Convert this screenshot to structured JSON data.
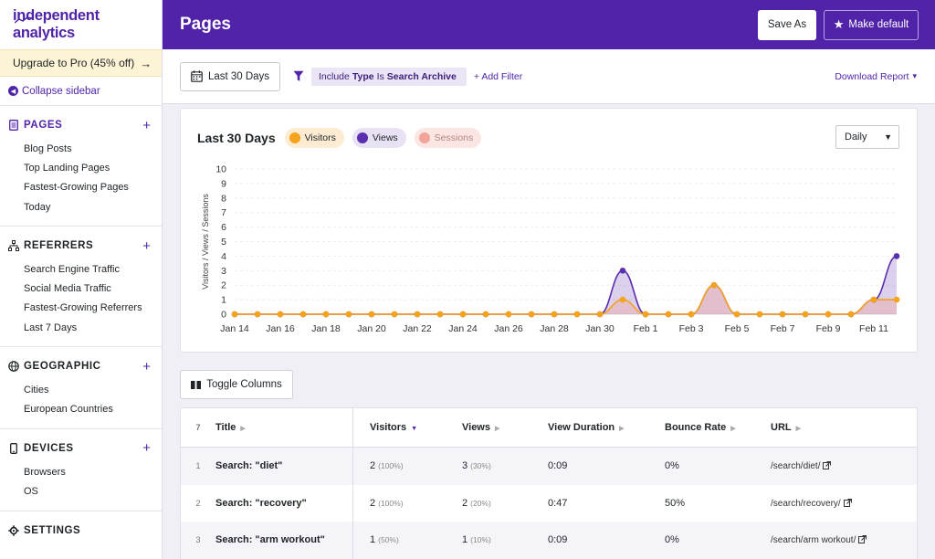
{
  "sidebar": {
    "logo": "independent analytics",
    "upgrade": "Upgrade to Pro (45% off)",
    "collapse": "Collapse sidebar",
    "sections": {
      "pages": {
        "title": "PAGES",
        "items": [
          "Blog Posts",
          "Top Landing Pages",
          "Fastest-Growing Pages",
          "Today"
        ]
      },
      "referrers": {
        "title": "REFERRERS",
        "items": [
          "Search Engine Traffic",
          "Social Media Traffic",
          "Fastest-Growing Referrers",
          "Last 7 Days"
        ]
      },
      "geographic": {
        "title": "GEOGRAPHIC",
        "items": [
          "Cities",
          "European Countries"
        ]
      },
      "devices": {
        "title": "DEVICES",
        "items": [
          "Browsers",
          "OS"
        ]
      },
      "settings": {
        "title": "SETTINGS"
      }
    }
  },
  "header": {
    "title": "Pages",
    "save_as": "Save As",
    "make_default": "Make default"
  },
  "toolbar": {
    "date_range": "Last 30 Days",
    "filter": {
      "prefix": "Include",
      "field": "Type",
      "op": "Is",
      "value": "Search Archive"
    },
    "add_filter": "+ Add Filter",
    "download": "Download Report"
  },
  "chart": {
    "title": "Last 30 Days",
    "legend": {
      "visitors": "Visitors",
      "views": "Views",
      "sessions": "Sessions"
    },
    "interval": "Daily",
    "colors": {
      "visitors": "#f5a31a",
      "views": "#5b2fae",
      "sessions": "#f0a49a"
    }
  },
  "chart_data": {
    "type": "line",
    "ylabel": "Visitors / Views / Sessions",
    "ylim": [
      0,
      10
    ],
    "yticks": [
      0,
      1,
      2,
      3,
      4,
      5,
      6,
      7,
      8,
      9,
      10
    ],
    "xtick_labels": [
      "Jan 14",
      "Jan 16",
      "Jan 18",
      "Jan 20",
      "Jan 22",
      "Jan 24",
      "Jan 26",
      "Jan 28",
      "Jan 30",
      "Feb 1",
      "Feb 3",
      "Feb 5",
      "Feb 7",
      "Feb 9",
      "Feb 11"
    ],
    "x": [
      "Jan 14",
      "Jan 15",
      "Jan 16",
      "Jan 17",
      "Jan 18",
      "Jan 19",
      "Jan 20",
      "Jan 21",
      "Jan 22",
      "Jan 23",
      "Jan 24",
      "Jan 25",
      "Jan 26",
      "Jan 27",
      "Jan 28",
      "Jan 29",
      "Jan 30",
      "Jan 31",
      "Feb 1",
      "Feb 2",
      "Feb 3",
      "Feb 4",
      "Feb 5",
      "Feb 6",
      "Feb 7",
      "Feb 8",
      "Feb 9",
      "Feb 10",
      "Feb 11",
      "Feb 12"
    ],
    "series": [
      {
        "name": "Views",
        "values": [
          0,
          0,
          0,
          0,
          0,
          0,
          0,
          0,
          0,
          0,
          0,
          0,
          0,
          0,
          0,
          0,
          0,
          3,
          0,
          0,
          0,
          2,
          0,
          0,
          0,
          0,
          0,
          0,
          1,
          4
        ]
      },
      {
        "name": "Visitors",
        "values": [
          0,
          0,
          0,
          0,
          0,
          0,
          0,
          0,
          0,
          0,
          0,
          0,
          0,
          0,
          0,
          0,
          0,
          1,
          0,
          0,
          0,
          2,
          0,
          0,
          0,
          0,
          0,
          0,
          1,
          1
        ]
      }
    ]
  },
  "table": {
    "toggle_columns": "Toggle Columns",
    "count": "7",
    "columns": {
      "title": "Title",
      "visitors": "Visitors",
      "views": "Views",
      "duration": "View Duration",
      "bounce": "Bounce Rate",
      "url": "URL"
    },
    "rows": [
      {
        "num": "1",
        "title": "Search: \"diet\"",
        "visitors": "2",
        "visitors_pct": "(100%)",
        "views": "3",
        "views_pct": "(30%)",
        "duration": "0:09",
        "bounce": "0%",
        "url": "/search/diet/"
      },
      {
        "num": "2",
        "title": "Search: \"recovery\"",
        "visitors": "2",
        "visitors_pct": "(100%)",
        "views": "2",
        "views_pct": "(20%)",
        "duration": "0:47",
        "bounce": "50%",
        "url": "/search/recovery/"
      },
      {
        "num": "3",
        "title": "Search: \"arm workout\"",
        "visitors": "1",
        "visitors_pct": "(50%)",
        "views": "1",
        "views_pct": "(10%)",
        "duration": "0:09",
        "bounce": "0%",
        "url": "/search/arm workout/"
      }
    ]
  }
}
